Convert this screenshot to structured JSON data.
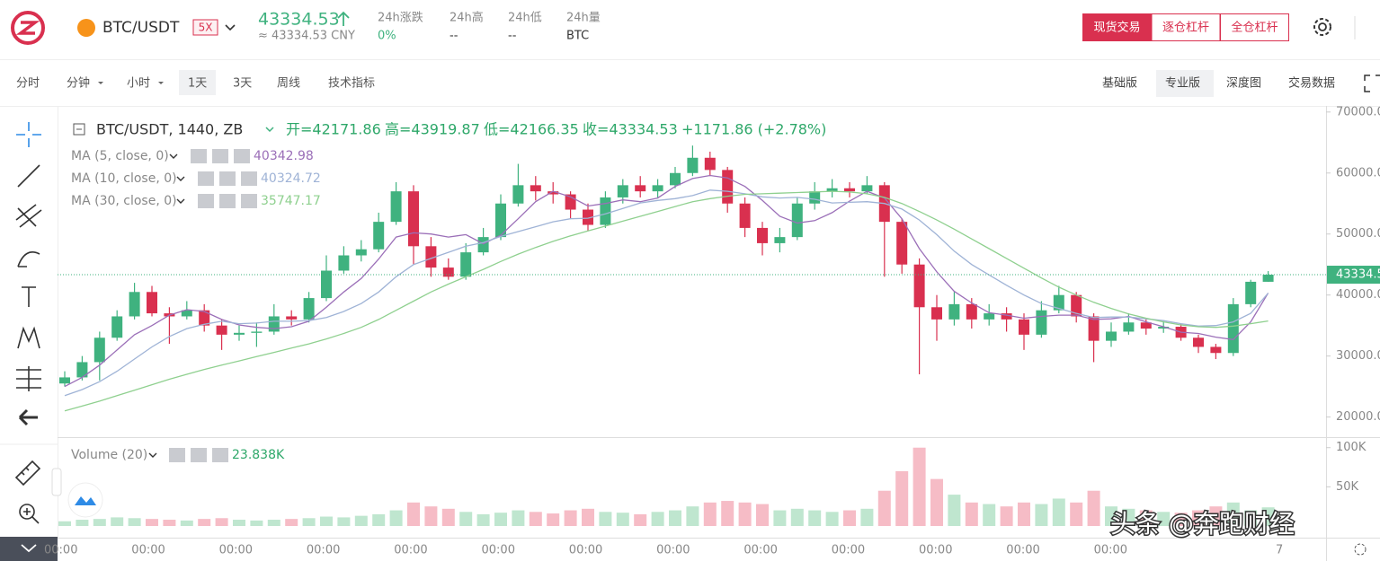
{
  "header": {
    "pair": "BTC/USDT",
    "leverage": "5X",
    "price": "43334.53",
    "cny": "≈ 43334.53 CNY",
    "stats": [
      {
        "label": "24h涨跌",
        "value": "0%"
      },
      {
        "label": "24h高",
        "value": "--"
      },
      {
        "label": "24h低",
        "value": "--"
      },
      {
        "label": "24h量",
        "value": "BTC"
      }
    ],
    "trade_modes": [
      "现货交易",
      "逐仓杠杆",
      "全仓杠杆"
    ]
  },
  "toolbar": {
    "intervals": [
      "分时",
      "分钟",
      "小时",
      "1天",
      "3天",
      "周线",
      "技术指标"
    ],
    "views": [
      "基础版",
      "专业版",
      "深度图",
      "交易数据"
    ]
  },
  "watermark": "头条 @奔跑财经",
  "chart_data": {
    "type": "candlestick",
    "legend_title": "BTC/USDT, 1440, ZB",
    "legend_ohlc": [
      "开=42171.86",
      "高=43919.87",
      "低=42166.35",
      "收=43334.53",
      "+1171.86 (+2.78%)"
    ],
    "up_color": "#3fb27f",
    "down_color": "#d9304f",
    "open": [
      25500,
      26500,
      29000,
      33000,
      36500,
      40500,
      37000,
      36500,
      37500,
      35000,
      33500,
      33800,
      34000,
      36500,
      36000,
      39500,
      44000,
      46500,
      47500,
      52000,
      57000,
      48000,
      44500,
      43000,
      47000,
      49500,
      55000,
      58000,
      57000,
      56500,
      54000,
      51500,
      56000,
      58000,
      57000,
      58000,
      60000,
      62500,
      60500,
      55000,
      51000,
      48500,
      49500,
      55000,
      57000,
      57500,
      57000,
      58000,
      52000,
      45000,
      38000,
      36000,
      38500,
      36000,
      37000,
      36000,
      33500,
      37500,
      40000,
      36500,
      32500,
      34000,
      35500,
      34500,
      34800,
      33000,
      31500,
      30500,
      38500,
      42171.86
    ],
    "high": [
      27500,
      30000,
      34000,
      37500,
      42000,
      41500,
      38000,
      39000,
      38500,
      36000,
      35000,
      35500,
      38500,
      37500,
      40500,
      46500,
      48000,
      49000,
      53500,
      58500,
      58000,
      49500,
      46000,
      48500,
      51000,
      56500,
      61500,
      59500,
      58500,
      57000,
      55000,
      57000,
      59000,
      59500,
      59000,
      61000,
      64500,
      63500,
      61000,
      56000,
      52000,
      51000,
      56000,
      58500,
      59000,
      58500,
      59500,
      58500,
      52500,
      46000,
      40000,
      40500,
      39500,
      38500,
      38000,
      37000,
      39000,
      41500,
      40500,
      37000,
      35500,
      37000,
      36000,
      35800,
      35300,
      33500,
      32000,
      39500,
      42500,
      43919.87
    ],
    "low": [
      25000,
      26000,
      26000,
      32500,
      36000,
      36500,
      32000,
      36000,
      34000,
      31000,
      32500,
      31500,
      33500,
      35000,
      35500,
      39000,
      43500,
      45500,
      47000,
      51500,
      45000,
      43000,
      42500,
      42500,
      46500,
      49000,
      54500,
      55500,
      55000,
      52500,
      50500,
      51000,
      55000,
      56000,
      56000,
      57500,
      59500,
      59500,
      53500,
      49500,
      46500,
      47000,
      49000,
      54000,
      56000,
      56000,
      56500,
      43000,
      43500,
      27000,
      32500,
      35000,
      34500,
      35000,
      34000,
      31000,
      33000,
      37000,
      35500,
      29000,
      31500,
      33500,
      33500,
      33800,
      32500,
      30500,
      29500,
      30000,
      38000,
      42166.35
    ],
    "close": [
      26500,
      29000,
      33000,
      36500,
      40500,
      37000,
      36500,
      37500,
      35000,
      33500,
      33800,
      34000,
      36500,
      36000,
      39500,
      44000,
      46500,
      47500,
      52000,
      57000,
      48000,
      44500,
      43000,
      47000,
      49500,
      55000,
      58000,
      57000,
      56500,
      54000,
      51500,
      56000,
      58000,
      57000,
      58000,
      60000,
      62500,
      60500,
      55000,
      51000,
      48500,
      49500,
      55000,
      57000,
      57500,
      57000,
      58000,
      52000,
      45000,
      38000,
      36000,
      38500,
      36000,
      37000,
      36000,
      33500,
      37500,
      40000,
      36500,
      32500,
      34000,
      35500,
      34500,
      34800,
      33000,
      31500,
      30500,
      38500,
      42171.86,
      43334.53
    ],
    "series": [
      {
        "name": "MA (5, close, 0)",
        "color": "#9b6fb8",
        "values": [
          25000,
          26500,
          28500,
          31000,
          33500,
          35000,
          36700,
          37600,
          37300,
          36000,
          35100,
          34700,
          34500,
          34800,
          35700,
          38000,
          40500,
          42700,
          45900,
          49500,
          50200,
          50000,
          49500,
          49900,
          48400,
          49800,
          52500,
          55300,
          57000,
          56100,
          54600,
          55000,
          55600,
          55300,
          55900,
          57800,
          59100,
          59600,
          59200,
          57800,
          55500,
          52900,
          51800,
          52200,
          53500,
          55400,
          57000,
          55900,
          52500,
          47600,
          43800,
          40600,
          38700,
          37100,
          36700,
          36200,
          36500,
          36700,
          36700,
          36000,
          36100,
          36500,
          35600,
          34800,
          33900,
          33700,
          33100,
          32700,
          35600,
          40342.98
        ]
      },
      {
        "name": "MA (10, close, 0)",
        "color": "#9fb3d6",
        "values": [
          23500,
          24500,
          25800,
          27500,
          29500,
          31500,
          33200,
          34500,
          35200,
          35700,
          35300,
          35400,
          35700,
          35700,
          35800,
          36300,
          37300,
          38600,
          40500,
          43000,
          45000,
          46000,
          47000,
          48000,
          48600,
          49600,
          50400,
          51200,
          52000,
          52500,
          52600,
          53300,
          54200,
          55100,
          55500,
          55800,
          56300,
          57200,
          57000,
          56600,
          56100,
          55900,
          56000,
          55700,
          55100,
          55200,
          55300,
          55000,
          54100,
          52300,
          49900,
          47200,
          45000,
          43300,
          41600,
          40000,
          38600,
          37800,
          37000,
          36300,
          36400,
          36400,
          36100,
          35800,
          35300,
          34900,
          35000,
          35600,
          37000,
          40324.72
        ]
      },
      {
        "name": "MA (30, close, 0)",
        "color": "#8fd08f",
        "values": [
          21000,
          21800,
          22600,
          23500,
          24400,
          25300,
          26200,
          27000,
          27800,
          28500,
          29200,
          29900,
          30600,
          31300,
          32000,
          32800,
          33700,
          34700,
          36000,
          37500,
          39000,
          40500,
          41800,
          43000,
          44200,
          45500,
          46700,
          47800,
          48800,
          49700,
          50500,
          51300,
          52100,
          52900,
          53700,
          54500,
          55300,
          55800,
          56200,
          56500,
          56600,
          56700,
          56800,
          56900,
          57000,
          56900,
          56600,
          56000,
          55000,
          53700,
          52300,
          50800,
          49200,
          47600,
          46000,
          44400,
          42800,
          41300,
          40000,
          38800,
          37800,
          36900,
          36200,
          35600,
          35100,
          34800,
          34700,
          34900,
          35300,
          35747.17
        ]
      }
    ],
    "ylim": [
      17000,
      71000
    ],
    "yticks": [
      {
        "value": 20000,
        "label": "20000.00"
      },
      {
        "value": 30000,
        "label": "30000.00"
      },
      {
        "value": 40000,
        "label": "40000.00"
      },
      {
        "value": 50000,
        "label": "50000.00"
      },
      {
        "value": 60000,
        "label": "60000.00"
      },
      {
        "value": 70000,
        "label": "70000.00"
      }
    ],
    "grid": false,
    "volume": {
      "name": "Volume (20)",
      "label": "23.838K",
      "up_color": "#bfe6cf",
      "down_color": "#f6bcc6",
      "values": [
        6000,
        8000,
        9000,
        11000,
        10000,
        9000,
        8000,
        7000,
        9000,
        10000,
        8000,
        7000,
        8000,
        9000,
        10000,
        12000,
        11000,
        13000,
        15000,
        20000,
        30000,
        25000,
        22000,
        18000,
        15000,
        17000,
        20000,
        18000,
        16000,
        20000,
        22000,
        18000,
        17000,
        15000,
        18000,
        20000,
        25000,
        30000,
        32000,
        30000,
        28000,
        20000,
        22000,
        20000,
        18000,
        20000,
        22000,
        45000,
        70000,
        100000,
        60000,
        40000,
        30000,
        28000,
        25000,
        30000,
        28000,
        35000,
        30000,
        45000,
        25000,
        22000,
        20000,
        18000,
        17000,
        20000,
        25000,
        30000,
        20000,
        23838
      ],
      "ylim": [
        0,
        110000
      ],
      "yticks": [
        {
          "value": 50000,
          "label": "50K"
        },
        {
          "value": 100000,
          "label": "100K"
        }
      ]
    },
    "x_labels": [
      "00:00",
      "00:00",
      "00:00",
      "00:00",
      "00:00",
      "00:00",
      "00:00",
      "00:00",
      "00:00",
      "00:00",
      "00:00",
      "00:00",
      "00:00"
    ],
    "x_end_label": "7"
  }
}
